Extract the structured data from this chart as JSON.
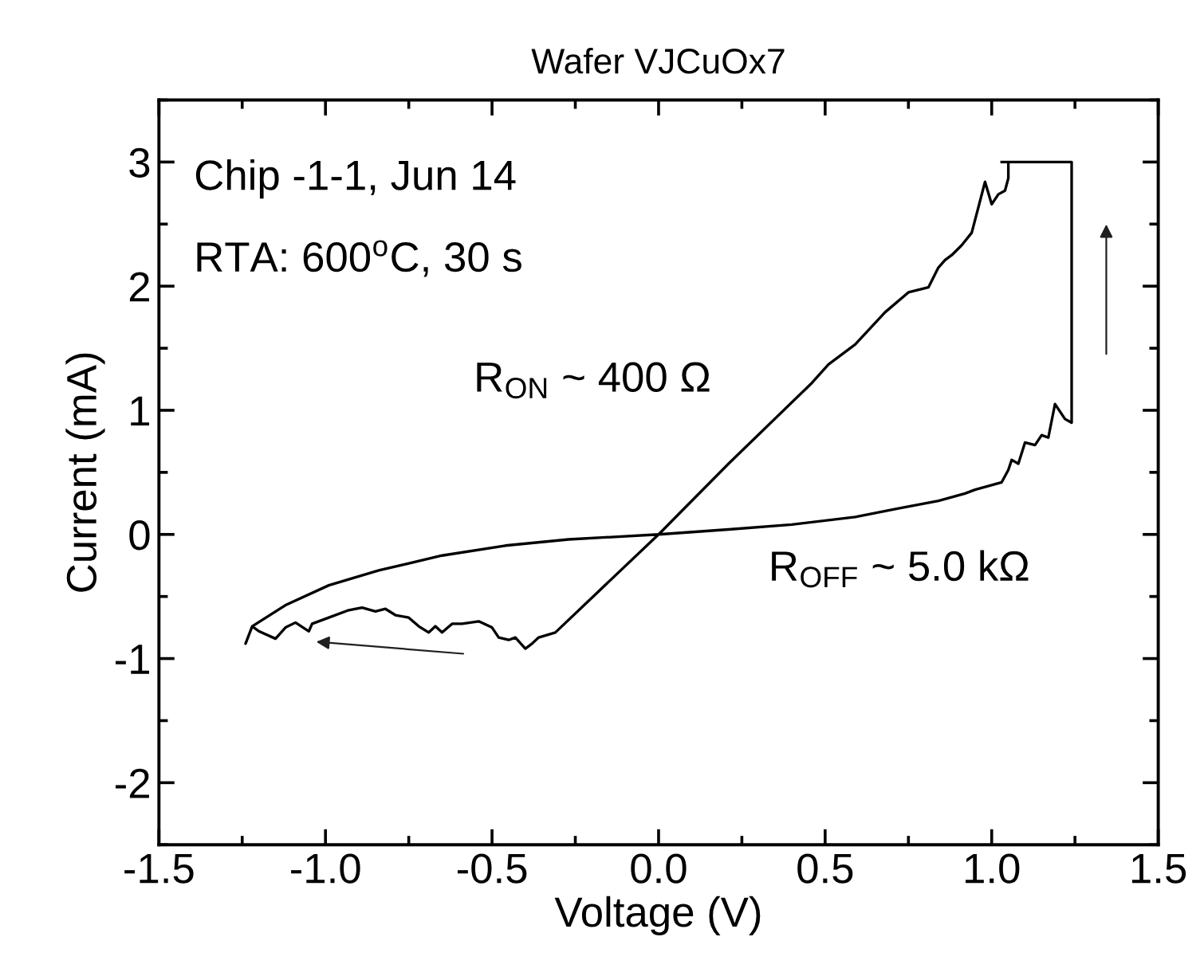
{
  "chart_data": {
    "type": "line",
    "title": "Wafer VJCuOx7",
    "xlabel": "Voltage (V)",
    "ylabel": "Current (mA)",
    "annotations": [
      "Chip -1-1, Jun 14",
      "RTA: 600$^{o}$C, 30 s",
      "R$_{ON}$ ~ 400 Ω",
      "R$_{OFF}$ ~ 5.0 kΩ"
    ],
    "x": [
      1.05,
      1.05,
      1.04,
      1.02,
      1.0,
      0.98,
      0.94,
      0.91,
      0.88,
      0.86,
      0.84,
      0.81,
      0.75,
      0.68,
      0.59,
      0.51,
      0.46,
      0.21,
      0,
      -0.31,
      -0.36,
      -0.38,
      -0.4,
      -0.43,
      -0.45,
      -0.48,
      -0.5,
      -0.54,
      -0.59,
      -0.62,
      -0.65,
      -0.67,
      -0.69,
      -0.72,
      -0.75,
      -0.79,
      -0.82,
      -0.85,
      -0.89,
      -0.93,
      -0.99,
      -1.04,
      -1.05,
      -1.09,
      -1.12,
      -1.15,
      -1.2,
      -1.22,
      -1.24,
      -1.22,
      -1.12,
      -0.99,
      -0.84,
      -0.65,
      -0.46,
      -0.27,
      0,
      0.21,
      0.4,
      0.59,
      0.72,
      0.84,
      0.92,
      0.95,
      1.03,
      1.05,
      1.06,
      1.08,
      1.1,
      1.13,
      1.15,
      1.17,
      1.19,
      1.22,
      1.24,
      1.24,
      1.03
    ],
    "series": [
      {
        "color": "#000000",
        "values": [
          3.0,
          2.87,
          2.77,
          2.74,
          2.66,
          2.84,
          2.43,
          2.33,
          2.25,
          2.21,
          2.15,
          1.99,
          1.95,
          1.79,
          1.53,
          1.37,
          1.22,
          0.57,
          0,
          -0.79,
          -0.83,
          -0.88,
          -0.92,
          -0.83,
          -0.85,
          -0.83,
          -0.75,
          -0.7,
          -0.72,
          -0.72,
          -0.79,
          -0.74,
          -0.79,
          -0.74,
          -0.67,
          -0.65,
          -0.6,
          -0.62,
          -0.59,
          -0.61,
          -0.67,
          -0.72,
          -0.78,
          -0.71,
          -0.75,
          -0.84,
          -0.78,
          -0.74,
          -0.88,
          -0.74,
          -0.57,
          -0.41,
          -0.29,
          -0.17,
          -0.09,
          -0.04,
          0,
          0.04,
          0.08,
          0.14,
          0.21,
          0.27,
          0.33,
          0.36,
          0.42,
          0.52,
          0.6,
          0.57,
          0.74,
          0.72,
          0.8,
          0.78,
          1.05,
          0.93,
          0.9,
          3.0,
          3.0
        ]
      }
    ],
    "xlim": [
      -1.5,
      1.5
    ],
    "xticks": [
      -1.5,
      {
        "value": -1,
        "label": "-1.0"
      },
      -0.5,
      {
        "value": 0,
        "label": "0.0"
      },
      0.5,
      {
        "value": 1,
        "label": "1.0"
      },
      1.5
    ],
    "ylim": [
      -2.5,
      3.5
    ],
    "yticks": [
      -2,
      -1,
      0,
      1,
      2,
      3
    ],
    "grid": false,
    "legend": false,
    "marker": "none",
    "line_style": "solid"
  }
}
